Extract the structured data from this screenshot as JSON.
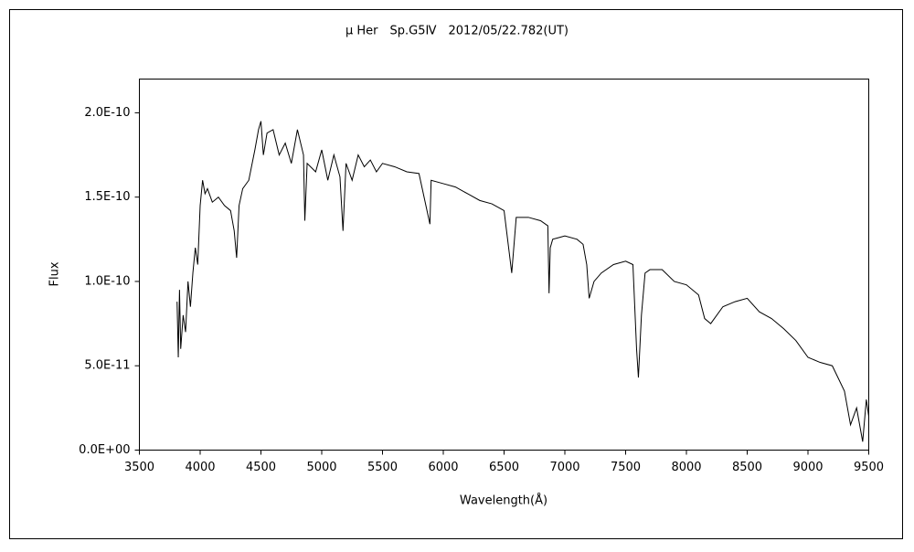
{
  "chart_data": {
    "type": "line",
    "title": "μ Her　Sp.G5Ⅳ　2012/05/22.782(UT)",
    "xlabel": "Wavelength(Å)",
    "ylabel": "Flux",
    "color": "#000000",
    "x": [
      3810,
      3820,
      3830,
      3840,
      3860,
      3880,
      3900,
      3920,
      3940,
      3960,
      3980,
      4000,
      4020,
      4040,
      4060,
      4100,
      4150,
      4200,
      4250,
      4280,
      4300,
      4320,
      4350,
      4400,
      4450,
      4480,
      4500,
      4520,
      4550,
      4600,
      4650,
      4700,
      4750,
      4800,
      4850,
      4861,
      4880,
      4950,
      5000,
      5050,
      5100,
      5150,
      5175,
      5200,
      5250,
      5300,
      5350,
      5400,
      5450,
      5500,
      5600,
      5700,
      5800,
      5890,
      5900,
      6000,
      6100,
      6200,
      6300,
      6400,
      6500,
      6563,
      6600,
      6700,
      6800,
      6860,
      6870,
      6880,
      6900,
      6950,
      7000,
      7100,
      7150,
      7180,
      7200,
      7240,
      7300,
      7400,
      7500,
      7560,
      7590,
      7605,
      7630,
      7660,
      7700,
      7800,
      7900,
      8000,
      8100,
      8150,
      8200,
      8300,
      8400,
      8500,
      8600,
      8700,
      8800,
      8900,
      9000,
      9100,
      9200,
      9300,
      9350,
      9400,
      9450,
      9480,
      9500
    ],
    "values": [
      8.8e-11,
      5.5e-11,
      9.5e-11,
      6e-11,
      8e-11,
      7e-11,
      1e-10,
      8.5e-11,
      1.05e-10,
      1.2e-10,
      1.1e-10,
      1.45e-10,
      1.6e-10,
      1.52e-10,
      1.55e-10,
      1.47e-10,
      1.5e-10,
      1.45e-10,
      1.42e-10,
      1.3e-10,
      1.14e-10,
      1.45e-10,
      1.55e-10,
      1.6e-10,
      1.78e-10,
      1.9e-10,
      1.95e-10,
      1.75e-10,
      1.88e-10,
      1.9e-10,
      1.75e-10,
      1.82e-10,
      1.7e-10,
      1.9e-10,
      1.75e-10,
      1.36e-10,
      1.7e-10,
      1.65e-10,
      1.78e-10,
      1.6e-10,
      1.75e-10,
      1.62e-10,
      1.3e-10,
      1.7e-10,
      1.6e-10,
      1.75e-10,
      1.68e-10,
      1.72e-10,
      1.65e-10,
      1.7e-10,
      1.68e-10,
      1.65e-10,
      1.64e-10,
      1.34e-10,
      1.6e-10,
      1.58e-10,
      1.56e-10,
      1.52e-10,
      1.48e-10,
      1.46e-10,
      1.42e-10,
      1.05e-10,
      1.38e-10,
      1.38e-10,
      1.36e-10,
      1.33e-10,
      9.3e-11,
      1.2e-10,
      1.25e-10,
      1.26e-10,
      1.27e-10,
      1.25e-10,
      1.22e-10,
      1.1e-10,
      9e-11,
      1e-10,
      1.05e-10,
      1.1e-10,
      1.12e-10,
      1.1e-10,
      6e-11,
      4.3e-11,
      8e-11,
      1.05e-10,
      1.07e-10,
      1.07e-10,
      1e-10,
      9.8e-11,
      9.2e-11,
      7.8e-11,
      7.5e-11,
      8.5e-11,
      8.8e-11,
      9e-11,
      8.2e-11,
      7.8e-11,
      7.2e-11,
      6.5e-11,
      5.5e-11,
      5.2e-11,
      5e-11,
      3.5e-11,
      1.5e-11,
      2.5e-11,
      5e-12,
      3e-11,
      2e-11
    ],
    "xlim": [
      3500,
      9500
    ],
    "xticks": [
      3500,
      4000,
      4500,
      5000,
      5500,
      6000,
      6500,
      7000,
      7500,
      8000,
      8500,
      9000,
      9500
    ],
    "ylim": [
      0,
      2.2e-10
    ],
    "yticks": [
      {
        "value": 0,
        "label": "0.0E+00"
      },
      {
        "value": 5e-11,
        "label": "5.0E-11"
      },
      {
        "value": 1e-10,
        "label": "1.0E-10"
      },
      {
        "value": 1.5e-10,
        "label": "1.5E-10"
      },
      {
        "value": 2e-10,
        "label": "2.0E-10"
      }
    ],
    "grid": false
  }
}
